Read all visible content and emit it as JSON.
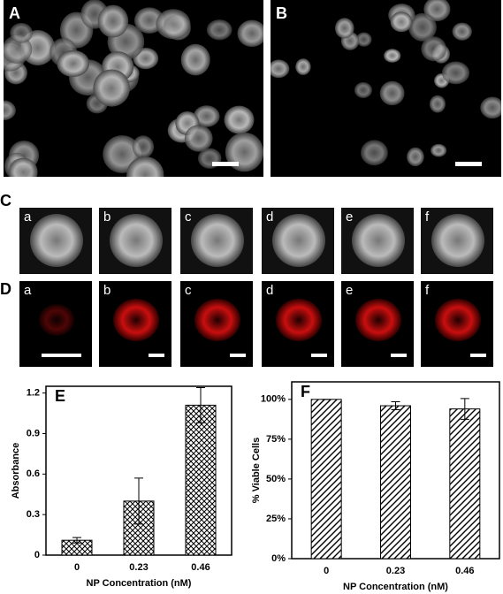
{
  "panel_labels": [
    "A",
    "B",
    "C",
    "D"
  ],
  "panel_c_labels": [
    "a",
    "b",
    "c",
    "d",
    "e",
    "f"
  ],
  "panel_d_labels": [
    "a",
    "b",
    "c",
    "d",
    "e",
    "f"
  ],
  "chart_data": [
    {
      "type": "bar",
      "title": "E",
      "x_label": "NP Concentration (nM)",
      "y_label": "Absorbance",
      "categories": [
        "0",
        "0.23",
        "0.46"
      ],
      "values": [
        0.11,
        0.4,
        1.11
      ],
      "errors": [
        0.02,
        0.17,
        0.13
      ],
      "pattern": "crosshatch",
      "ylim": [
        0,
        1.25
      ],
      "yticks": [
        0,
        0.3,
        0.6,
        0.9,
        1.2
      ]
    },
    {
      "type": "bar",
      "title": "F",
      "x_label": "NP Concentration (nM)",
      "y_label": "% Viable Cells",
      "categories": [
        "0",
        "0.23",
        "0.46"
      ],
      "values": [
        100,
        96,
        94
      ],
      "errors": [
        0,
        2.5,
        6.5
      ],
      "pattern": "diagonal",
      "ylim": [
        0,
        111
      ],
      "yticks": [
        {
          "value": 0,
          "label": "0%"
        },
        {
          "value": 25,
          "label": "25%"
        },
        {
          "value": 50,
          "label": "50%"
        },
        {
          "value": 75,
          "label": "75%"
        },
        {
          "value": 100,
          "label": "100%"
        }
      ]
    }
  ]
}
